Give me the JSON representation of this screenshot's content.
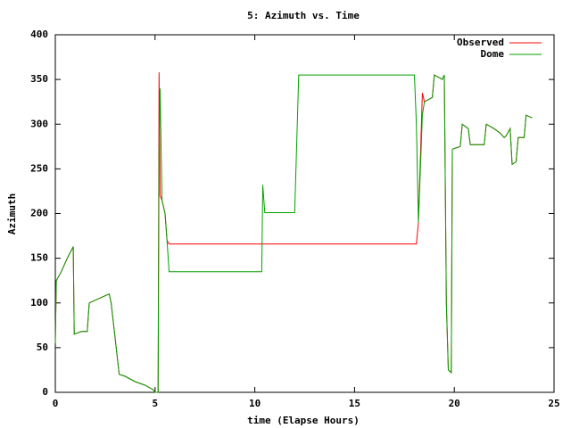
{
  "chart_data": {
    "type": "line",
    "title": "5: Azimuth vs. Time",
    "x_label": "time (Elapse Hours)",
    "y_label": "Azimuth",
    "x": [
      0,
      0.05,
      0.3,
      0.6,
      0.9,
      0.95,
      1.3,
      1.6,
      1.7,
      2.0,
      2.5,
      2.7,
      2.8,
      3.2,
      3.5,
      4.0,
      4.5,
      4.9,
      5.0,
      5.15,
      5.2,
      5.25,
      5.35,
      5.5,
      5.6,
      5.7,
      10.35,
      10.4,
      10.5,
      12.0,
      12.2,
      18.0,
      18.1,
      18.2,
      18.4,
      18.5,
      18.9,
      19.0,
      19.4,
      19.5,
      19.6,
      19.7,
      19.85,
      19.9,
      20.3,
      20.4,
      20.7,
      20.8,
      21.5,
      21.6,
      22.0,
      22.3,
      22.5,
      22.6,
      22.8,
      22.9,
      23.1,
      23.2,
      23.5,
      23.6,
      23.9
    ],
    "series": [
      {
        "name": "Observed",
        "color": "#ff0000",
        "values": [
          55,
          125,
          135,
          150,
          163,
          65,
          68,
          68,
          100,
          103,
          108,
          110,
          100,
          20,
          18,
          12,
          8,
          3,
          0,
          0,
          358,
          220,
          215,
          200,
          170,
          166,
          166,
          166,
          166,
          166,
          166,
          166,
          166,
          190,
          335,
          325,
          330,
          355,
          350,
          355,
          100,
          25,
          22,
          272,
          275,
          300,
          295,
          277,
          277,
          300,
          295,
          290,
          285,
          287,
          295,
          255,
          258,
          285,
          285,
          310,
          307
        ]
      },
      {
        "name": "Dome",
        "color": "#00a000",
        "values": [
          55,
          125,
          135,
          150,
          163,
          65,
          68,
          68,
          100,
          103,
          108,
          110,
          100,
          20,
          18,
          12,
          8,
          3,
          0,
          0,
          270,
          340,
          215,
          200,
          170,
          135,
          135,
          232,
          201,
          201,
          355,
          355,
          300,
          190,
          310,
          325,
          330,
          355,
          350,
          355,
          100,
          25,
          22,
          272,
          275,
          300,
          295,
          277,
          277,
          300,
          295,
          290,
          285,
          287,
          295,
          255,
          258,
          285,
          285,
          310,
          307
        ]
      }
    ],
    "xlim": [
      0,
      25
    ],
    "xticks": [
      0,
      5,
      10,
      15,
      20,
      25
    ],
    "ylim": [
      0,
      400
    ],
    "yticks": [
      0,
      50,
      100,
      150,
      200,
      250,
      300,
      350,
      400
    ],
    "legend": "top-right"
  }
}
